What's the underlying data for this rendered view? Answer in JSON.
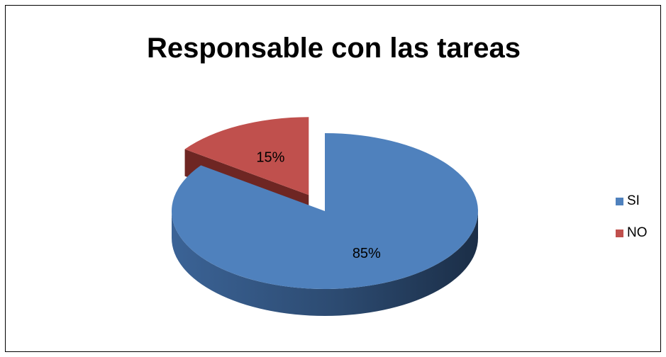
{
  "chart_data": {
    "type": "pie",
    "title": "Responsable con las tareas",
    "categories": [
      "SI",
      "NO"
    ],
    "values": [
      85,
      15
    ],
    "data_labels": [
      "85%",
      "15%"
    ],
    "colors": [
      "#4F81BD",
      "#C0504D"
    ],
    "side_colors": [
      "#2C4A70",
      "#6E2623"
    ],
    "legend_position": "right",
    "exploded": "NO",
    "style": "3d"
  }
}
